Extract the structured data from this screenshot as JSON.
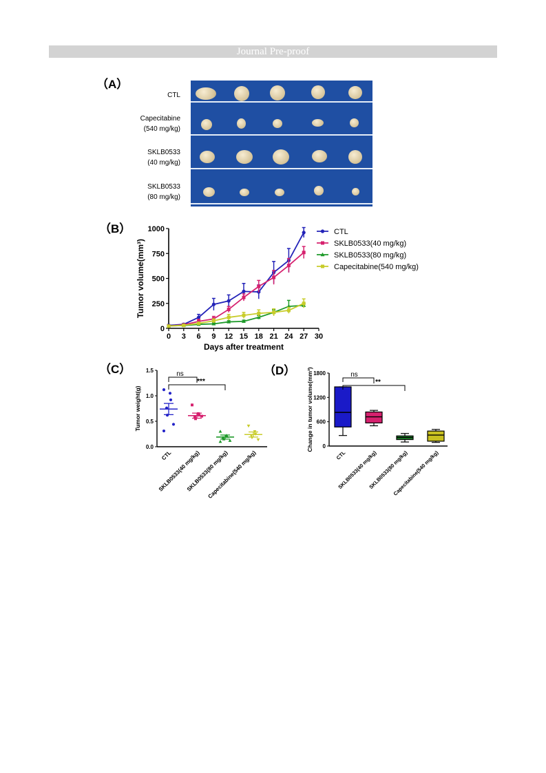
{
  "header": {
    "banner": "Journal Pre-proof"
  },
  "panels": {
    "A": "（A）",
    "B": "（B）",
    "C": "（C）",
    "D": "（D）"
  },
  "photo_groups": [
    {
      "line1": "CTL",
      "line2": ""
    },
    {
      "line1": "Capecitabine",
      "line2": "(540 mg/kg)"
    },
    {
      "line1": "SKLB0533",
      "line2": "(40 mg/kg)"
    },
    {
      "line1": "SKLB0533",
      "line2": "(80 mg/kg)"
    }
  ],
  "chart_data": [
    {
      "type": "line",
      "panel": "B",
      "xlabel": "Days after treatment",
      "ylabel": "Tumor volume(mm³)",
      "x": [
        0,
        3,
        6,
        9,
        12,
        15,
        18,
        21,
        24,
        27
      ],
      "xticks": [
        0,
        3,
        6,
        9,
        12,
        15,
        18,
        21,
        24,
        27,
        30
      ],
      "yticks": [
        0,
        250,
        500,
        750,
        1000
      ],
      "xlim": [
        0,
        30
      ],
      "ylim": [
        0,
        1000
      ],
      "legend_position": "top-right",
      "series": [
        {
          "name": "CTL",
          "color": "#2323b8",
          "marker": "circle",
          "values": [
            30,
            40,
            110,
            240,
            275,
            370,
            365,
            560,
            680,
            960
          ],
          "err": [
            8,
            10,
            30,
            60,
            60,
            80,
            70,
            110,
            120,
            50
          ]
        },
        {
          "name": "SKLB0533(40 mg/kg)",
          "color": "#d6216e",
          "marker": "square",
          "values": [
            25,
            35,
            70,
            95,
            190,
            310,
            420,
            510,
            630,
            760
          ],
          "err": [
            6,
            8,
            20,
            25,
            30,
            35,
            60,
            70,
            70,
            60
          ]
        },
        {
          "name": "SKLB0533(80 mg/kg)",
          "color": "#1e9a2a",
          "marker": "triangle",
          "values": [
            25,
            28,
            40,
            45,
            65,
            70,
            110,
            160,
            220,
            230
          ],
          "err": [
            5,
            6,
            8,
            10,
            12,
            12,
            18,
            25,
            60,
            20
          ]
        },
        {
          "name": "Capecitabine(540 mg/kg)",
          "color": "#c8cc2a",
          "marker": "square",
          "values": [
            22,
            30,
            50,
            75,
            110,
            130,
            150,
            160,
            180,
            250
          ],
          "err": [
            5,
            6,
            12,
            20,
            30,
            30,
            35,
            35,
            30,
            45
          ]
        }
      ]
    },
    {
      "type": "scatter",
      "panel": "C",
      "ylabel": "Tumor weight(g)",
      "categories": [
        "CTL",
        "SKLB0533(40 mg/kg)",
        "SKLB0533(80 mg/kg)",
        "Capecitabine(540 mg/kg)"
      ],
      "yticks": [
        0.0,
        0.5,
        1.0,
        1.5
      ],
      "ytick_labels": [
        "0.0",
        "0.5",
        "1.0",
        "1.5"
      ],
      "ylim": [
        0,
        1.5
      ],
      "colors": [
        "#2323c8",
        "#d6216e",
        "#1e9a2a",
        "#c8cc2a"
      ],
      "means": [
        0.74,
        0.61,
        0.19,
        0.24
      ],
      "sem": [
        0.11,
        0.05,
        0.04,
        0.05
      ],
      "points": [
        [
          1.12,
          1.05,
          0.92,
          0.76,
          0.62,
          0.44,
          0.31
        ],
        [
          0.82,
          0.65,
          0.62,
          0.58,
          0.55,
          0.6
        ],
        [
          0.3,
          0.22,
          0.2,
          0.18,
          0.15,
          0.12,
          0.1
        ],
        [
          0.41,
          0.3,
          0.25,
          0.22,
          0.18,
          0.14
        ]
      ],
      "annotations": [
        {
          "from": 0,
          "to": 1,
          "label": "ns"
        },
        {
          "from": 0,
          "to": 2,
          "label": "***"
        }
      ]
    },
    {
      "type": "box",
      "panel": "D",
      "ylabel": "Change in tumor volume(mm³)",
      "categories": [
        "CTL",
        "SKLB0533(40 mg/kg)",
        "SKLB0533(80 mg/kg)",
        "Capecitabine(540 mg/kg)"
      ],
      "yticks": [
        0,
        600,
        1200,
        1800
      ],
      "ylim": [
        0,
        1800
      ],
      "colors": [
        "#1a1ac8",
        "#d6216e",
        "#1e8a2a",
        "#c8c020"
      ],
      "boxes": [
        {
          "min": 260,
          "q1": 470,
          "median": 830,
          "q3": 1460,
          "max": 1460
        },
        {
          "min": 500,
          "q1": 570,
          "median": 720,
          "q3": 840,
          "max": 880
        },
        {
          "min": 100,
          "q1": 160,
          "median": 210,
          "q3": 250,
          "max": 310
        },
        {
          "min": 90,
          "q1": 120,
          "median": 270,
          "q3": 370,
          "max": 410
        }
      ],
      "annotations": [
        {
          "from": 0,
          "to": 1,
          "label": "ns"
        },
        {
          "from": 0,
          "to": 2,
          "label": "**"
        }
      ]
    }
  ]
}
